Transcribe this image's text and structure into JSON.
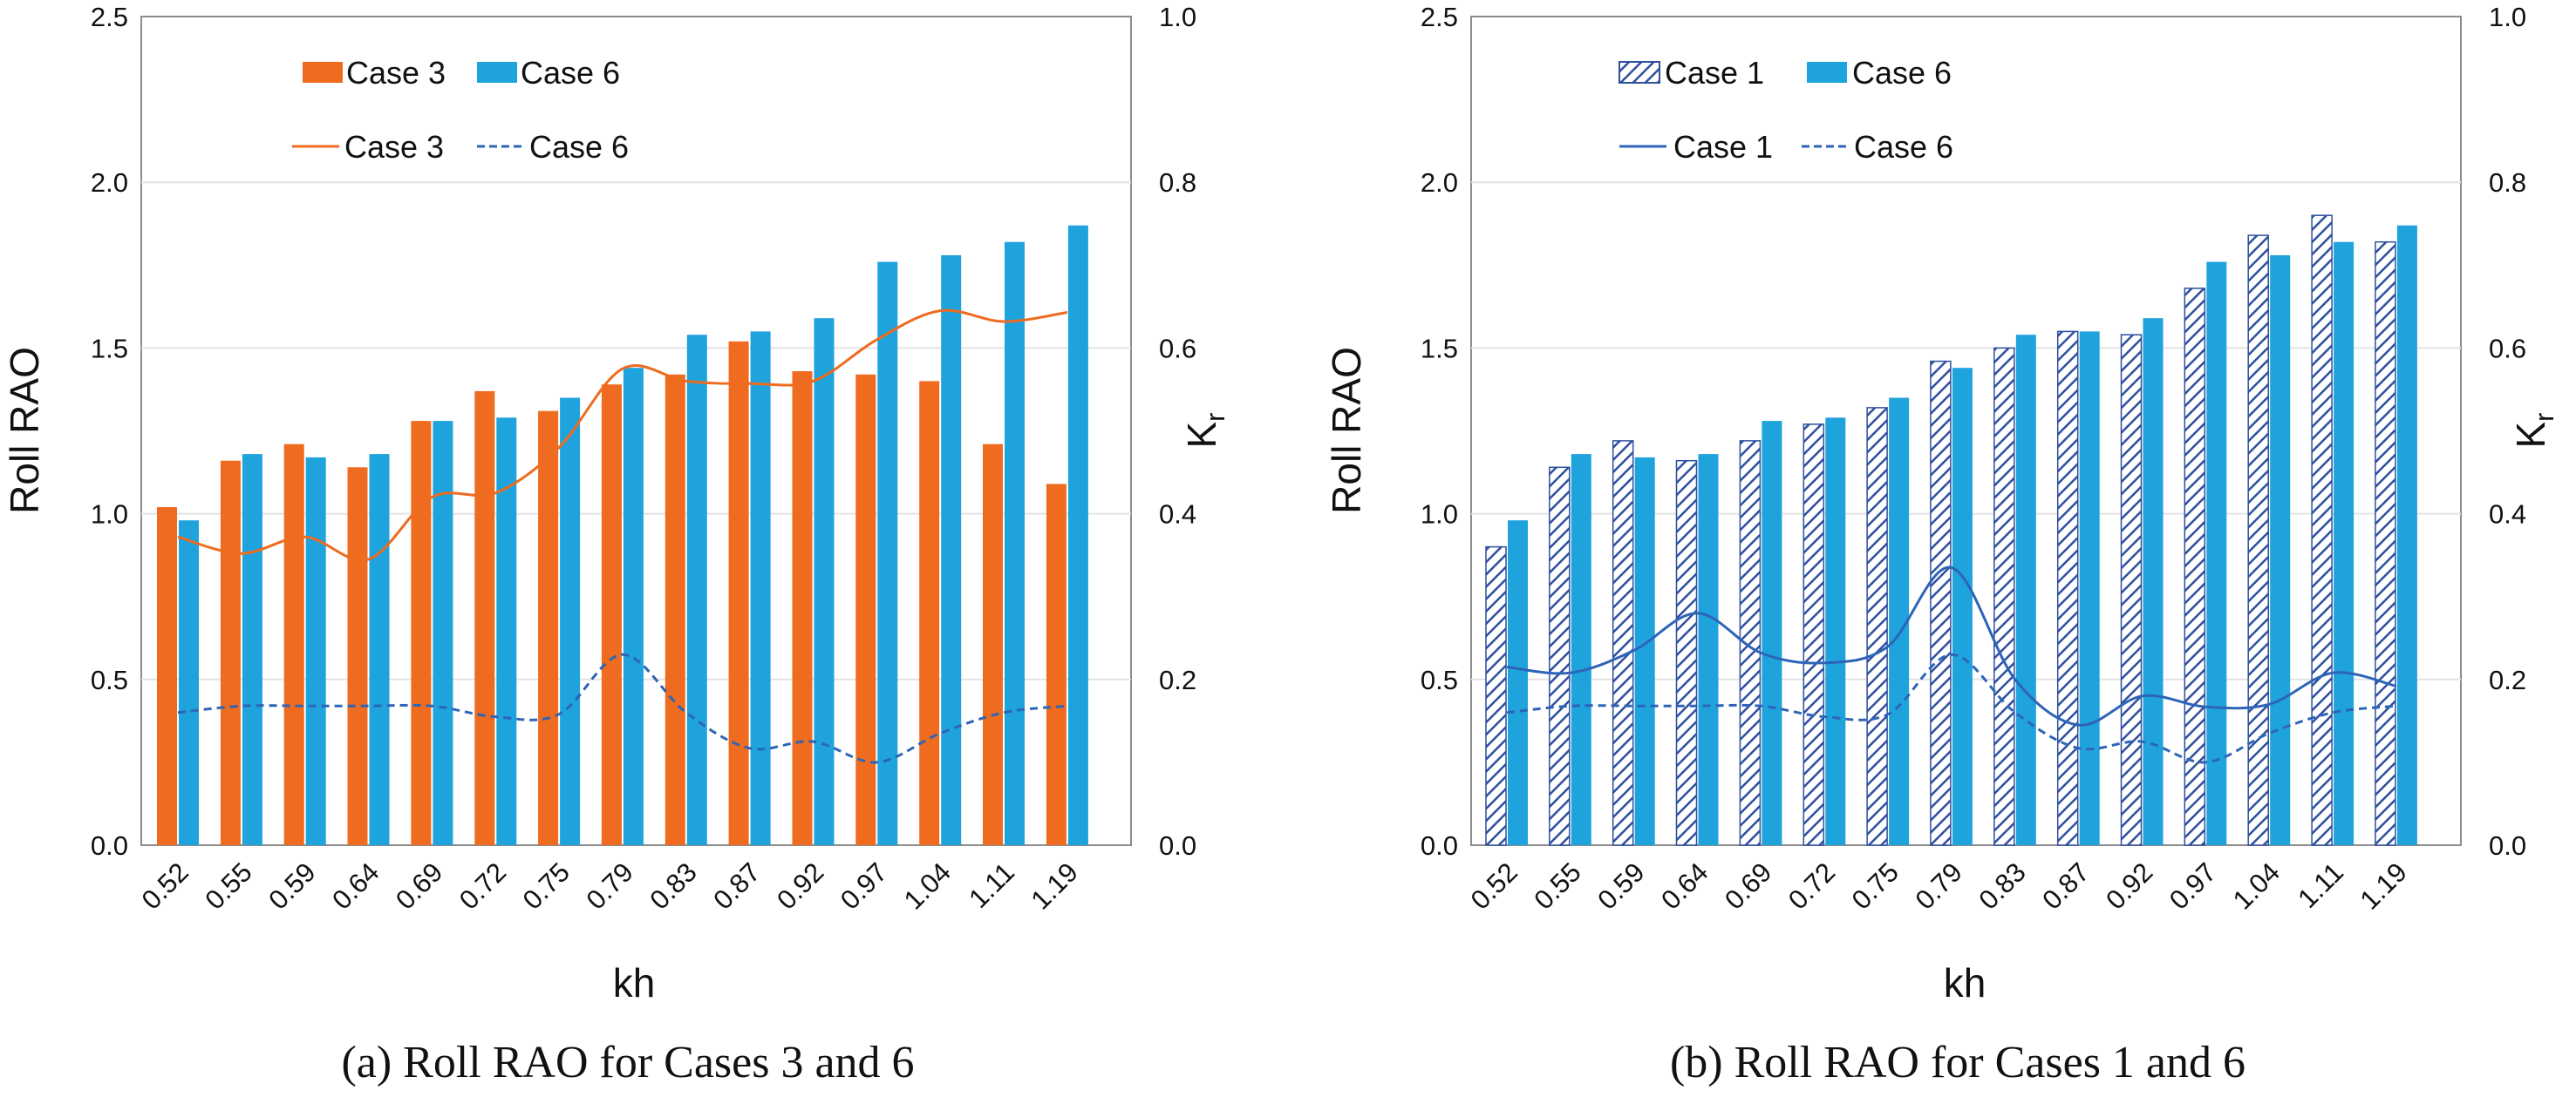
{
  "chart_data": [
    {
      "type": "bar",
      "panel": "a",
      "caption": "(a) Roll RAO for Cases 3 and 6",
      "xlabel": "kh",
      "ylabel": "Roll RAO",
      "y2label": "K",
      "y2label_sub": "r",
      "ylim": [
        0,
        2.5
      ],
      "y2lim": [
        0,
        1.0
      ],
      "yticks": [
        "0.0",
        "0.5",
        "1.0",
        "1.5",
        "2.0",
        "2.5"
      ],
      "y2ticks": [
        "0.0",
        "0.2",
        "0.4",
        "0.6",
        "0.8",
        "1.0"
      ],
      "categories": [
        "0.52",
        "0.55",
        "0.59",
        "0.64",
        "0.69",
        "0.72",
        "0.75",
        "0.79",
        "0.83",
        "0.87",
        "0.92",
        "0.97",
        "1.04",
        "1.11",
        "1.19"
      ],
      "grid": true,
      "series": [
        {
          "name": "Case 3",
          "kind": "bar",
          "pattern": "solid",
          "color": "#EE6B1F",
          "values": [
            1.02,
            1.16,
            1.21,
            1.14,
            1.28,
            1.37,
            1.31,
            1.39,
            1.42,
            1.52,
            1.43,
            1.42,
            1.4,
            1.21,
            1.09
          ]
        },
        {
          "name": "Case 6",
          "kind": "bar",
          "pattern": "solid",
          "color": "#1FA3DC",
          "values": [
            0.98,
            1.18,
            1.17,
            1.18,
            1.28,
            1.29,
            1.35,
            1.44,
            1.54,
            1.55,
            1.59,
            1.76,
            1.78,
            1.82,
            1.87
          ]
        },
        {
          "name": "Case 3",
          "kind": "line",
          "dash": "solid",
          "color": "#EE6B1F",
          "axis": "right",
          "values": [
            0.372,
            0.352,
            0.372,
            0.345,
            0.42,
            0.425,
            0.48,
            0.575,
            0.56,
            0.557,
            0.56,
            0.61,
            0.645,
            0.632,
            0.643
          ]
        },
        {
          "name": "Case 6",
          "kind": "line",
          "dash": "dashed",
          "color": "#2E64B8",
          "axis": "right",
          "values": [
            0.16,
            0.168,
            0.168,
            0.168,
            0.168,
            0.155,
            0.158,
            0.23,
            0.16,
            0.117,
            0.125,
            0.1,
            0.135,
            0.16,
            0.168
          ]
        }
      ]
    },
    {
      "type": "bar",
      "panel": "b",
      "caption": "(b) Roll RAO for Cases 1 and 6",
      "xlabel": "kh",
      "ylabel": "Roll RAO",
      "y2label": "K",
      "y2label_sub": "r",
      "ylim": [
        0,
        2.5
      ],
      "y2lim": [
        0,
        1.0
      ],
      "yticks": [
        "0.0",
        "0.5",
        "1.0",
        "1.5",
        "2.0",
        "2.5"
      ],
      "y2ticks": [
        "0.0",
        "0.2",
        "0.4",
        "0.6",
        "0.8",
        "1.0"
      ],
      "categories": [
        "0.52",
        "0.55",
        "0.59",
        "0.64",
        "0.69",
        "0.72",
        "0.75",
        "0.79",
        "0.83",
        "0.87",
        "0.92",
        "0.97",
        "1.04",
        "1.11",
        "1.19"
      ],
      "grid": true,
      "series": [
        {
          "name": "Case 1",
          "kind": "bar",
          "pattern": "hatched",
          "color": "#2E4F9E",
          "values": [
            0.9,
            1.14,
            1.22,
            1.16,
            1.22,
            1.27,
            1.32,
            1.46,
            1.5,
            1.55,
            1.54,
            1.68,
            1.84,
            1.9,
            1.82
          ]
        },
        {
          "name": "Case 6",
          "kind": "bar",
          "pattern": "solid",
          "color": "#1FA3DC",
          "values": [
            0.98,
            1.18,
            1.17,
            1.18,
            1.28,
            1.29,
            1.35,
            1.44,
            1.54,
            1.55,
            1.59,
            1.76,
            1.78,
            1.82,
            1.87
          ]
        },
        {
          "name": "Case 1",
          "kind": "line",
          "dash": "solid",
          "color": "#2E64B8",
          "axis": "right",
          "values": [
            0.215,
            0.208,
            0.235,
            0.28,
            0.232,
            0.22,
            0.24,
            0.335,
            0.2,
            0.145,
            0.18,
            0.167,
            0.17,
            0.208,
            0.192
          ]
        },
        {
          "name": "Case 6",
          "kind": "line",
          "dash": "dashed",
          "color": "#2E64B8",
          "axis": "right",
          "values": [
            0.16,
            0.168,
            0.168,
            0.168,
            0.168,
            0.155,
            0.158,
            0.23,
            0.16,
            0.117,
            0.125,
            0.1,
            0.135,
            0.16,
            0.168
          ]
        }
      ]
    }
  ]
}
